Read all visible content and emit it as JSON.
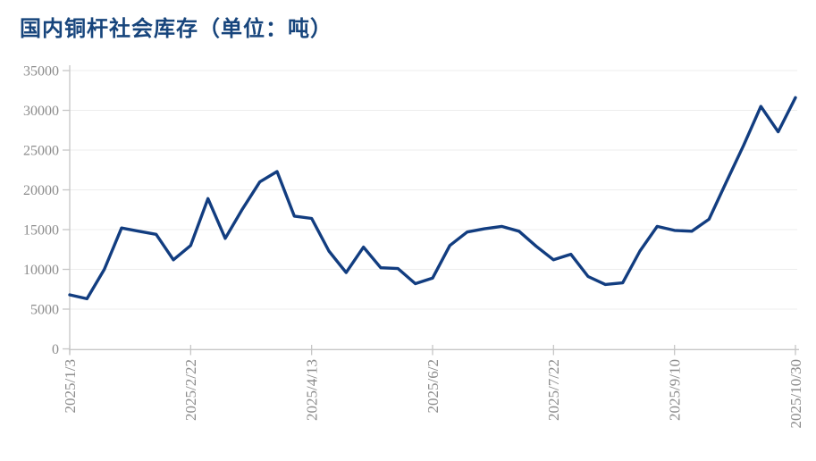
{
  "page": {
    "background": "#ffffff"
  },
  "header": {
    "title": "国内铜杆社会库存（单位：吨）",
    "title_color": "#17457c"
  },
  "chart_data": {
    "type": "line",
    "title": "国内铜杆社会库存（单位：吨）",
    "series": [
      {
        "name": "国内铜杆社会库存",
        "color": "#123d80",
        "values": [
          6800,
          6300,
          10000,
          15200,
          14800,
          14400,
          11200,
          13000,
          18900,
          13900,
          17600,
          21000,
          22300,
          16700,
          16400,
          12300,
          9600,
          12800,
          10200,
          10100,
          8200,
          8900,
          13000,
          14700,
          15100,
          15400,
          14800,
          12900,
          11200,
          11900,
          9100,
          8100,
          8300,
          12300,
          15400,
          14900,
          14800,
          16300,
          21000,
          25600,
          30500,
          27300,
          31600
        ]
      }
    ],
    "x": [
      "2025/1/3",
      "2025/1/10",
      "2025/1/17",
      "2025/1/24",
      "2025/2/1",
      "2025/2/8",
      "2025/2/15",
      "2025/2/22",
      "2025/3/1",
      "2025/3/8",
      "2025/3/15",
      "2025/3/23",
      "2025/3/30",
      "2025/4/6",
      "2025/4/13",
      "2025/4/20",
      "2025/4/27",
      "2025/5/4",
      "2025/5/12",
      "2025/5/19",
      "2025/5/26",
      "2025/6/2",
      "2025/6/9",
      "2025/6/16",
      "2025/6/23",
      "2025/7/1",
      "2025/7/8",
      "2025/7/15",
      "2025/7/22",
      "2025/7/29",
      "2025/8/5",
      "2025/8/12",
      "2025/8/20",
      "2025/8/27",
      "2025/9/3",
      "2025/9/10",
      "2025/9/17",
      "2025/9/24",
      "2025/10/1",
      "2025/10/9",
      "2025/10/16",
      "2025/10/23",
      "2025/10/30"
    ],
    "x_tick_labels": [
      "2025/1/3",
      "2025/2/22",
      "2025/4/13",
      "2025/6/2",
      "2025/7/22",
      "2025/9/10",
      "2025/10/30"
    ],
    "x_tick_every": 7,
    "ylim": [
      0,
      35000
    ],
    "y_tick_step": 5000,
    "y_tick_labels": [
      "0",
      "5000",
      "10000",
      "15000",
      "20000",
      "25000",
      "30000",
      "35000"
    ],
    "grid": "horizontal",
    "legend": "none",
    "colors": {
      "line": "#123d80",
      "axis": "#c6c6c6",
      "labels": "#8c8c8c",
      "gridlines": "#ededed"
    }
  }
}
